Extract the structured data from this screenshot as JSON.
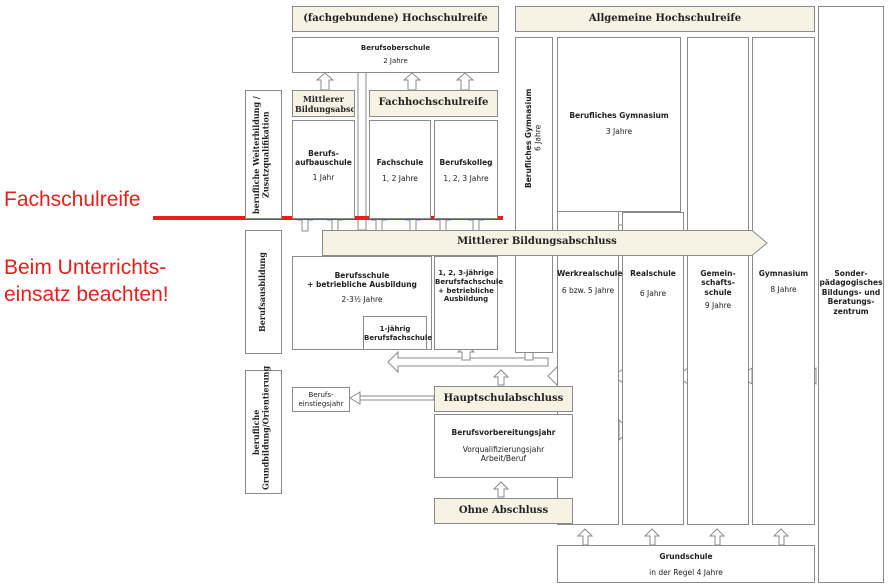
{
  "top": {
    "fachgebundene_hochschulreife": "(fachgebundene) Hochschulreife",
    "allgemeine_hochschulreife": "Allgemeine Hochschulreife"
  },
  "berufsoberschule": {
    "name": "Berufsoberschule",
    "duration": "2 Jahre"
  },
  "mittlerer_bildungsabschl": "Mittlerer Bildungsabschl",
  "fachhochschulreife": "Fachhochschulreife",
  "berufsaufbauschule": {
    "name": "Berufs-\naufbauschule",
    "duration": "1 Jahr"
  },
  "fachschule": {
    "name": "Fachschule",
    "duration": "1, 2 Jahre"
  },
  "berufskolleg": {
    "name": "Berufskolleg",
    "duration": "1, 2, 3 Jahre"
  },
  "berufliches_gymnasium_vertical": {
    "name": "Berufliches Gymnasium",
    "duration": "6 Jahre"
  },
  "berufliches_gymnasium": {
    "name": "Berufliches Gymnasium",
    "duration": "3 Jahre"
  },
  "side_labels": {
    "weiterbildung": "berufliche Weiterbildung /\nZusatzqualifikation",
    "berufsausbildung": "Berufsausbildung",
    "grundbildung": "berufliche\nGrundbildung/Orientierung"
  },
  "mittlerer_bildungsabschluss": "Mittlerer Bildungsabschluss",
  "berufsschule": {
    "name": "Berufsschule\n+ betriebliche Ausbildung",
    "duration": "2-3½ Jahre"
  },
  "einjaehrig_berufsfachschule": "1-jährig\nBerufsfachschule",
  "mehrjaehrig_berufsfachschule": "1, 2, 3-jährige\nBerufsfachschule\n+ betriebliche\nAusbildung",
  "werkrealschule": {
    "name": "Werkrealschule",
    "duration": "6 bzw. 5 Jahre"
  },
  "realschule": {
    "name": "Realschule",
    "duration": "6 Jahre"
  },
  "gemeinschaftsschule": {
    "name": "Gemein-\nschafts-\nschule",
    "duration": "9 Jahre"
  },
  "gymnasium": {
    "name": "Gymnasium",
    "duration": "8 Jahre"
  },
  "sbbz": "Sonder-\npädagogisches\nBildungs- und\nBeratungs-\nzentrum",
  "berufseinstiegsjahr": "Berufs-\neinstiegsjahr",
  "hauptschulabschluss": "Hauptschulabschluss",
  "berufsvorbereitungsjahr": {
    "name": "Berufsvorbereitungsjahr",
    "sub": "Vorqualifizierungsjahr\nArbeit/Beruf"
  },
  "ohne_abschluss": "Ohne Abschluss",
  "grundschule": {
    "name": "Grundschule",
    "duration": "in der Regel 4 Jahre"
  },
  "annotations": {
    "fachschulreife": "Fachschulreife",
    "beachten": "Beim Unterrichts-\neinsatz beachten!"
  },
  "colors": {
    "annotation": "#e8201c",
    "beige": "#f6f3e4",
    "border": "#8a8a8a"
  }
}
